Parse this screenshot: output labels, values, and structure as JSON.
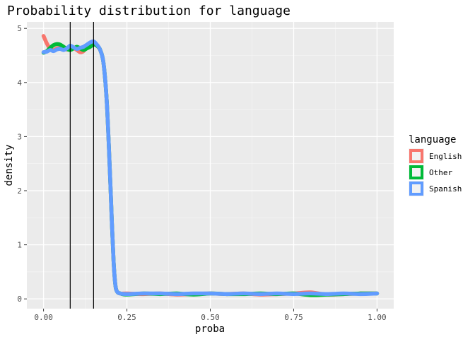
{
  "chart_data": {
    "type": "line",
    "title": "Probability distribution for language",
    "xlabel": "proba",
    "ylabel": "density",
    "xlim": [
      -0.05,
      1.05
    ],
    "ylim": [
      -0.18,
      5.12
    ],
    "x_ticks": [
      0,
      0.25,
      0.5,
      0.75,
      1.0
    ],
    "x_tick_labels": [
      "0.00",
      "0.25",
      "0.50",
      "0.75",
      "1.00"
    ],
    "y_ticks": [
      0,
      1,
      2,
      3,
      4,
      5
    ],
    "y_tick_labels": [
      "0",
      "1",
      "2",
      "3",
      "4",
      "5"
    ],
    "grid": true,
    "legend_title": "language",
    "legend_position": "right",
    "vlines": [
      0.08,
      0.15
    ],
    "series": [
      {
        "name": "English",
        "color": "#F8766D",
        "x": [
          0.0,
          0.01,
          0.02,
          0.03,
          0.04,
          0.05,
          0.06,
          0.07,
          0.08,
          0.09,
          0.1,
          0.11,
          0.12,
          0.13,
          0.14,
          0.15,
          0.16,
          0.17,
          0.18,
          0.19,
          0.2,
          0.205,
          0.21,
          0.215,
          0.22,
          0.23,
          0.25,
          0.3,
          0.35,
          0.4,
          0.45,
          0.5,
          0.55,
          0.6,
          0.65,
          0.7,
          0.75,
          0.8,
          0.85,
          0.9,
          0.95,
          1.0
        ],
        "y": [
          4.86,
          4.72,
          4.62,
          4.6,
          4.63,
          4.64,
          4.62,
          4.61,
          4.63,
          4.64,
          4.6,
          4.56,
          4.58,
          4.66,
          4.72,
          4.74,
          4.68,
          4.6,
          4.35,
          3.6,
          2.2,
          1.4,
          0.7,
          0.28,
          0.14,
          0.1,
          0.1,
          0.09,
          0.1,
          0.08,
          0.09,
          0.1,
          0.09,
          0.1,
          0.08,
          0.09,
          0.1,
          0.12,
          0.08,
          0.09,
          0.1,
          0.1
        ]
      },
      {
        "name": "Other",
        "color": "#00BA38",
        "x": [
          0.0,
          0.01,
          0.02,
          0.03,
          0.04,
          0.05,
          0.06,
          0.07,
          0.08,
          0.09,
          0.1,
          0.11,
          0.12,
          0.13,
          0.14,
          0.15,
          0.16,
          0.17,
          0.18,
          0.19,
          0.2,
          0.205,
          0.21,
          0.215,
          0.22,
          0.23,
          0.25,
          0.3,
          0.35,
          0.4,
          0.45,
          0.5,
          0.55,
          0.6,
          0.65,
          0.7,
          0.75,
          0.8,
          0.85,
          0.9,
          0.95,
          1.0
        ],
        "y": [
          4.55,
          4.58,
          4.64,
          4.69,
          4.71,
          4.7,
          4.66,
          4.62,
          4.6,
          4.63,
          4.66,
          4.63,
          4.6,
          4.63,
          4.66,
          4.7,
          4.68,
          4.6,
          4.35,
          3.6,
          2.2,
          1.4,
          0.7,
          0.28,
          0.14,
          0.1,
          0.08,
          0.1,
          0.09,
          0.1,
          0.08,
          0.1,
          0.09,
          0.09,
          0.1,
          0.09,
          0.1,
          0.07,
          0.08,
          0.09,
          0.1,
          0.1
        ]
      },
      {
        "name": "Spanish",
        "color": "#619CFF",
        "x": [
          0.0,
          0.01,
          0.02,
          0.03,
          0.04,
          0.05,
          0.06,
          0.07,
          0.08,
          0.09,
          0.1,
          0.11,
          0.12,
          0.13,
          0.14,
          0.15,
          0.16,
          0.17,
          0.18,
          0.19,
          0.2,
          0.205,
          0.21,
          0.215,
          0.22,
          0.23,
          0.25,
          0.3,
          0.35,
          0.4,
          0.45,
          0.5,
          0.55,
          0.6,
          0.65,
          0.7,
          0.75,
          0.8,
          0.85,
          0.9,
          0.95,
          1.0
        ],
        "y": [
          4.56,
          4.57,
          4.6,
          4.58,
          4.61,
          4.62,
          4.6,
          4.63,
          4.68,
          4.65,
          4.62,
          4.64,
          4.66,
          4.7,
          4.74,
          4.76,
          4.7,
          4.6,
          4.35,
          3.6,
          2.2,
          1.4,
          0.7,
          0.28,
          0.14,
          0.1,
          0.09,
          0.1,
          0.1,
          0.09,
          0.1,
          0.1,
          0.09,
          0.1,
          0.09,
          0.1,
          0.09,
          0.1,
          0.09,
          0.1,
          0.09,
          0.1
        ]
      }
    ]
  }
}
